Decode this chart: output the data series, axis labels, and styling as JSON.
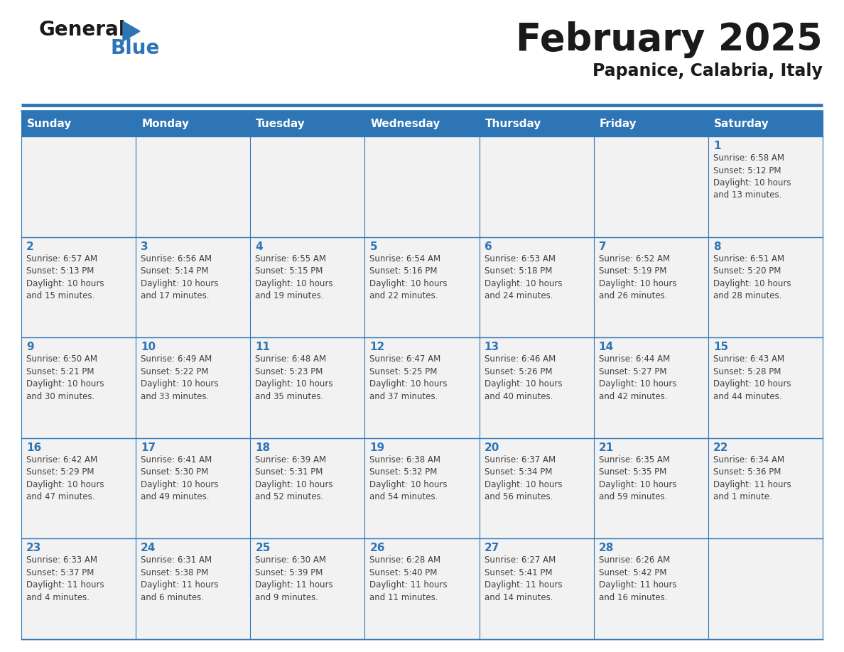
{
  "title": "February 2025",
  "subtitle": "Papanice, Calabria, Italy",
  "days_of_week": [
    "Sunday",
    "Monday",
    "Tuesday",
    "Wednesday",
    "Thursday",
    "Friday",
    "Saturday"
  ],
  "header_bg": "#2E75B6",
  "header_text": "#FFFFFF",
  "cell_bg": "#F2F2F2",
  "border_color": "#2E75B6",
  "day_number_color": "#2E75B6",
  "info_color": "#404040",
  "title_color": "#1a1a1a",
  "logo_general_color": "#1a1a1a",
  "logo_blue_color": "#2E75B6",
  "calendar_data": [
    [
      {
        "day": null,
        "info": ""
      },
      {
        "day": null,
        "info": ""
      },
      {
        "day": null,
        "info": ""
      },
      {
        "day": null,
        "info": ""
      },
      {
        "day": null,
        "info": ""
      },
      {
        "day": null,
        "info": ""
      },
      {
        "day": 1,
        "info": "Sunrise: 6:58 AM\nSunset: 5:12 PM\nDaylight: 10 hours\nand 13 minutes."
      }
    ],
    [
      {
        "day": 2,
        "info": "Sunrise: 6:57 AM\nSunset: 5:13 PM\nDaylight: 10 hours\nand 15 minutes."
      },
      {
        "day": 3,
        "info": "Sunrise: 6:56 AM\nSunset: 5:14 PM\nDaylight: 10 hours\nand 17 minutes."
      },
      {
        "day": 4,
        "info": "Sunrise: 6:55 AM\nSunset: 5:15 PM\nDaylight: 10 hours\nand 19 minutes."
      },
      {
        "day": 5,
        "info": "Sunrise: 6:54 AM\nSunset: 5:16 PM\nDaylight: 10 hours\nand 22 minutes."
      },
      {
        "day": 6,
        "info": "Sunrise: 6:53 AM\nSunset: 5:18 PM\nDaylight: 10 hours\nand 24 minutes."
      },
      {
        "day": 7,
        "info": "Sunrise: 6:52 AM\nSunset: 5:19 PM\nDaylight: 10 hours\nand 26 minutes."
      },
      {
        "day": 8,
        "info": "Sunrise: 6:51 AM\nSunset: 5:20 PM\nDaylight: 10 hours\nand 28 minutes."
      }
    ],
    [
      {
        "day": 9,
        "info": "Sunrise: 6:50 AM\nSunset: 5:21 PM\nDaylight: 10 hours\nand 30 minutes."
      },
      {
        "day": 10,
        "info": "Sunrise: 6:49 AM\nSunset: 5:22 PM\nDaylight: 10 hours\nand 33 minutes."
      },
      {
        "day": 11,
        "info": "Sunrise: 6:48 AM\nSunset: 5:23 PM\nDaylight: 10 hours\nand 35 minutes."
      },
      {
        "day": 12,
        "info": "Sunrise: 6:47 AM\nSunset: 5:25 PM\nDaylight: 10 hours\nand 37 minutes."
      },
      {
        "day": 13,
        "info": "Sunrise: 6:46 AM\nSunset: 5:26 PM\nDaylight: 10 hours\nand 40 minutes."
      },
      {
        "day": 14,
        "info": "Sunrise: 6:44 AM\nSunset: 5:27 PM\nDaylight: 10 hours\nand 42 minutes."
      },
      {
        "day": 15,
        "info": "Sunrise: 6:43 AM\nSunset: 5:28 PM\nDaylight: 10 hours\nand 44 minutes."
      }
    ],
    [
      {
        "day": 16,
        "info": "Sunrise: 6:42 AM\nSunset: 5:29 PM\nDaylight: 10 hours\nand 47 minutes."
      },
      {
        "day": 17,
        "info": "Sunrise: 6:41 AM\nSunset: 5:30 PM\nDaylight: 10 hours\nand 49 minutes."
      },
      {
        "day": 18,
        "info": "Sunrise: 6:39 AM\nSunset: 5:31 PM\nDaylight: 10 hours\nand 52 minutes."
      },
      {
        "day": 19,
        "info": "Sunrise: 6:38 AM\nSunset: 5:32 PM\nDaylight: 10 hours\nand 54 minutes."
      },
      {
        "day": 20,
        "info": "Sunrise: 6:37 AM\nSunset: 5:34 PM\nDaylight: 10 hours\nand 56 minutes."
      },
      {
        "day": 21,
        "info": "Sunrise: 6:35 AM\nSunset: 5:35 PM\nDaylight: 10 hours\nand 59 minutes."
      },
      {
        "day": 22,
        "info": "Sunrise: 6:34 AM\nSunset: 5:36 PM\nDaylight: 11 hours\nand 1 minute."
      }
    ],
    [
      {
        "day": 23,
        "info": "Sunrise: 6:33 AM\nSunset: 5:37 PM\nDaylight: 11 hours\nand 4 minutes."
      },
      {
        "day": 24,
        "info": "Sunrise: 6:31 AM\nSunset: 5:38 PM\nDaylight: 11 hours\nand 6 minutes."
      },
      {
        "day": 25,
        "info": "Sunrise: 6:30 AM\nSunset: 5:39 PM\nDaylight: 11 hours\nand 9 minutes."
      },
      {
        "day": 26,
        "info": "Sunrise: 6:28 AM\nSunset: 5:40 PM\nDaylight: 11 hours\nand 11 minutes."
      },
      {
        "day": 27,
        "info": "Sunrise: 6:27 AM\nSunset: 5:41 PM\nDaylight: 11 hours\nand 14 minutes."
      },
      {
        "day": 28,
        "info": "Sunrise: 6:26 AM\nSunset: 5:42 PM\nDaylight: 11 hours\nand 16 minutes."
      },
      {
        "day": null,
        "info": ""
      }
    ]
  ],
  "figsize": [
    11.88,
    9.18
  ],
  "dpi": 100
}
